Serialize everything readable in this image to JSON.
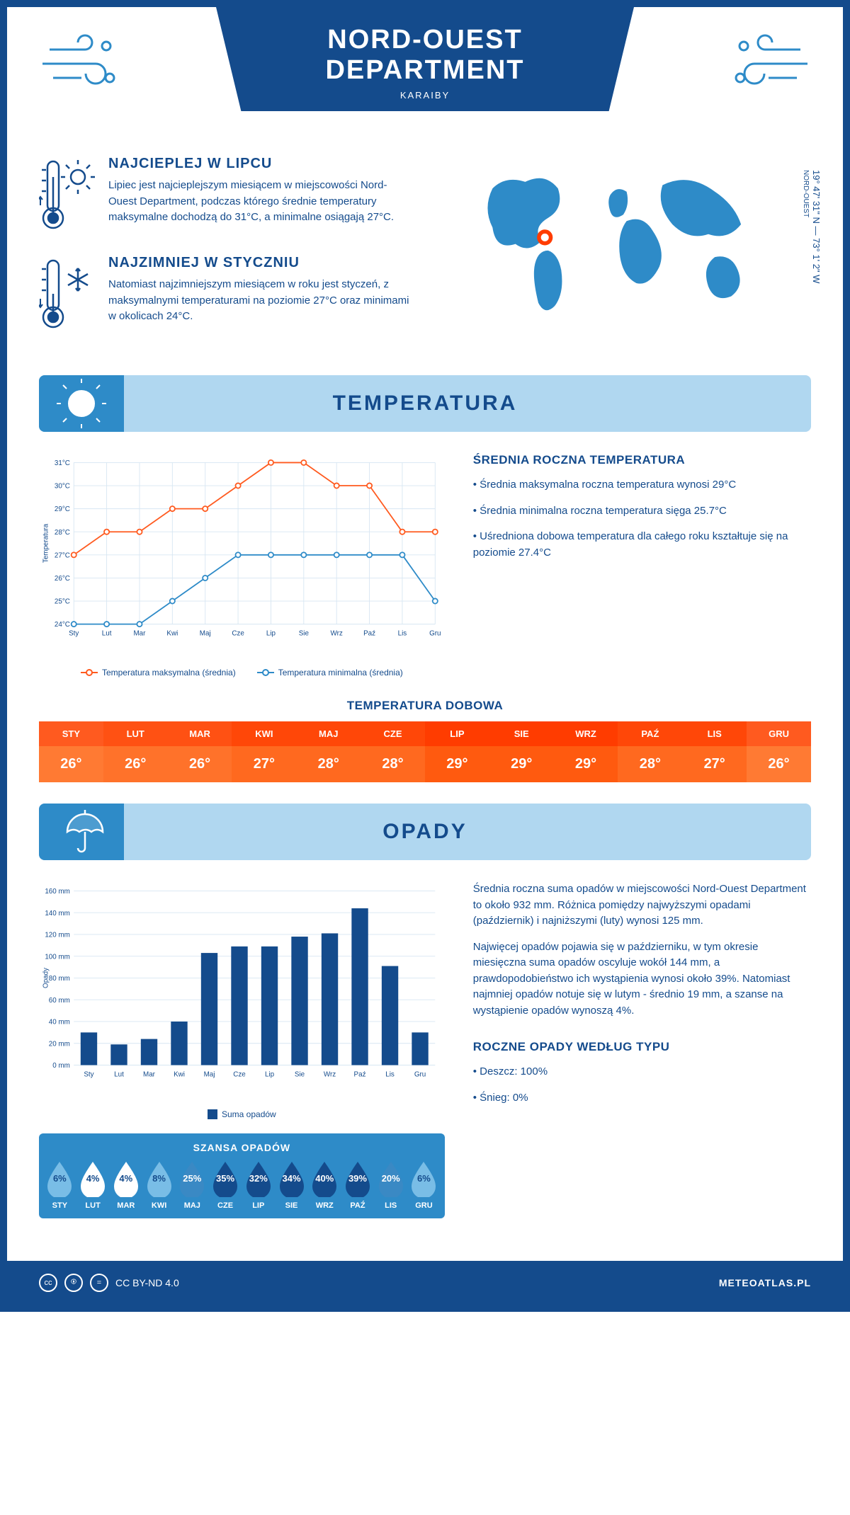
{
  "header": {
    "title": "NORD-OUEST DEPARTMENT",
    "subtitle": "KARAIBY"
  },
  "coords": {
    "text": "19° 47' 31\" N — 73° 1' 2\" W",
    "label": "NORD-OUEST"
  },
  "intro": {
    "hot": {
      "title": "NAJCIEPLEJ W LIPCU",
      "text": "Lipiec jest najcieplejszym miesiącem w miejscowości Nord-Ouest Department, podczas którego średnie temperatury maksymalne dochodzą do 31°C, a minimalne osiągają 27°C."
    },
    "cold": {
      "title": "NAJZIMNIEJ W STYCZNIU",
      "text": "Natomiast najzimniejszym miesiącem w roku jest styczeń, z maksymalnymi temperaturami na poziomie 27°C oraz minimami w okolicach 24°C."
    }
  },
  "temp_section": {
    "title": "TEMPERATURA",
    "chart": {
      "type": "line",
      "months": [
        "Sty",
        "Lut",
        "Mar",
        "Kwi",
        "Maj",
        "Cze",
        "Lip",
        "Sie",
        "Wrz",
        "Paź",
        "Lis",
        "Gru"
      ],
      "ylabel": "Temperatura",
      "ylim": [
        24,
        31
      ],
      "ytick_step": 1,
      "y_suffix": "°C",
      "series": [
        {
          "name": "Temperatura maksymalna (średnia)",
          "color": "#ff5a1f",
          "values": [
            27,
            28,
            28,
            29,
            29,
            30,
            31,
            31,
            30,
            30,
            28,
            28
          ]
        },
        {
          "name": "Temperatura minimalna (średnia)",
          "color": "#2e8bc8",
          "values": [
            24,
            24,
            24,
            25,
            26,
            27,
            27,
            27,
            27,
            27,
            27,
            25
          ]
        }
      ],
      "grid_color": "#d7e6f2",
      "background": "#ffffff",
      "marker": "circle_open",
      "line_width": 2
    },
    "info": {
      "title": "ŚREDNIA ROCZNA TEMPERATURA",
      "bullets": [
        "Średnia maksymalna roczna temperatura wynosi 29°C",
        "Średnia minimalna roczna temperatura sięga 25.7°C",
        "Uśredniona dobowa temperatura dla całego roku kształtuje się na poziomie 27.4°C"
      ]
    },
    "daily": {
      "title": "TEMPERATURA DOBOWA",
      "months": [
        "STY",
        "LUT",
        "MAR",
        "KWI",
        "MAJ",
        "CZE",
        "LIP",
        "SIE",
        "WRZ",
        "PAŹ",
        "LIS",
        "GRU"
      ],
      "values": [
        "26°",
        "26°",
        "26°",
        "27°",
        "28°",
        "28°",
        "29°",
        "29°",
        "29°",
        "28°",
        "27°",
        "26°"
      ],
      "header_colors": [
        "#ff5a1f",
        "#ff5113",
        "#ff5113",
        "#ff4708",
        "#ff4708",
        "#ff4708",
        "#ff3c00",
        "#ff3c00",
        "#ff3c00",
        "#ff4708",
        "#ff4708",
        "#ff5a1f"
      ],
      "value_colors": [
        "#ff7a33",
        "#ff722a",
        "#ff722a",
        "#ff691f",
        "#ff691f",
        "#ff691f",
        "#ff5a0f",
        "#ff5a0f",
        "#ff5a0f",
        "#ff691f",
        "#ff691f",
        "#ff7a33"
      ]
    }
  },
  "rain_section": {
    "title": "OPADY",
    "chart": {
      "type": "bar",
      "months": [
        "Sty",
        "Lut",
        "Mar",
        "Kwi",
        "Maj",
        "Cze",
        "Lip",
        "Sie",
        "Wrz",
        "Paź",
        "Lis",
        "Gru"
      ],
      "ylabel": "Opady",
      "ylim": [
        0,
        160
      ],
      "ytick_step": 20,
      "y_suffix": " mm",
      "values": [
        30,
        19,
        24,
        40,
        103,
        109,
        109,
        118,
        121,
        144,
        91,
        30
      ],
      "bar_color": "#144b8c",
      "grid_color": "#d7e6f2",
      "bar_width": 0.55,
      "legend": "Suma opadów"
    },
    "info": {
      "p1": "Średnia roczna suma opadów w miejscowości Nord-Ouest Department to około 932 mm. Różnica pomiędzy najwyższymi opadami (październik) i najniższymi (luty) wynosi 125 mm.",
      "p2": "Najwięcej opadów pojawia się w październiku, w tym okresie miesięczna suma opadów oscyluje wokół 144 mm, a prawdopodobieństwo ich wystąpienia wynosi około 39%. Natomiast najmniej opadów notuje się w lutym - średnio 19 mm, a szanse na wystąpienie opadów wynoszą 4%."
    },
    "chance": {
      "title": "SZANSA OPADÓW",
      "months": [
        "STY",
        "LUT",
        "MAR",
        "KWI",
        "MAJ",
        "CZE",
        "LIP",
        "SIE",
        "WRZ",
        "PAŹ",
        "LIS",
        "GRU"
      ],
      "values": [
        "6%",
        "4%",
        "4%",
        "8%",
        "25%",
        "35%",
        "32%",
        "34%",
        "40%",
        "39%",
        "20%",
        "6%"
      ],
      "fills": [
        "#79bde6",
        "#ffffff",
        "#ffffff",
        "#79bde6",
        "#3a89c4",
        "#144b8c",
        "#144b8c",
        "#144b8c",
        "#144b8c",
        "#144b8c",
        "#3a89c4",
        "#79bde6"
      ],
      "text_colors": [
        "#144b8c",
        "#144b8c",
        "#144b8c",
        "#144b8c",
        "#ffffff",
        "#ffffff",
        "#ffffff",
        "#ffffff",
        "#ffffff",
        "#ffffff",
        "#ffffff",
        "#144b8c"
      ]
    },
    "by_type": {
      "title": "ROCZNE OPADY WEDŁUG TYPU",
      "bullets": [
        "Deszcz: 100%",
        "Śnieg: 0%"
      ]
    }
  },
  "footer": {
    "license": "CC BY-ND 4.0",
    "site": "METEOATLAS.PL"
  },
  "colors": {
    "primary": "#144b8c",
    "light_blue": "#b0d7f0",
    "mid_blue": "#2e8bc8",
    "orange": "#ff5a1f"
  }
}
